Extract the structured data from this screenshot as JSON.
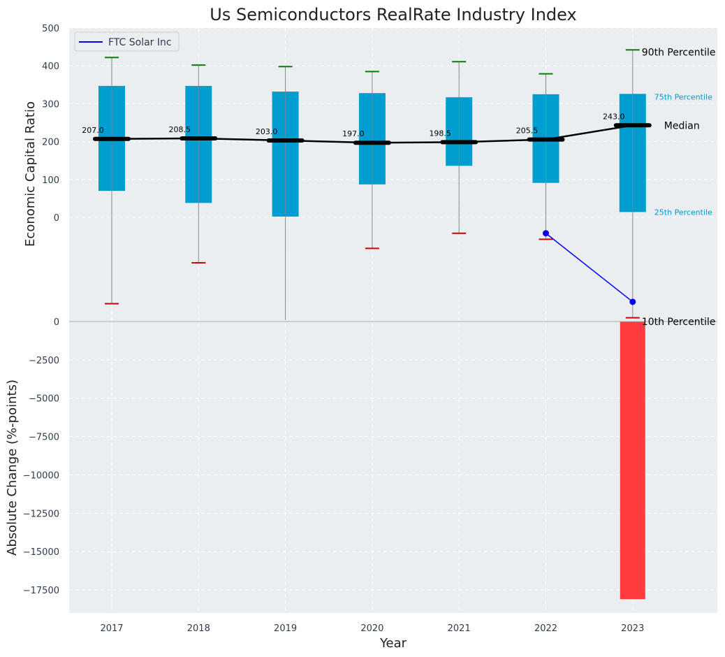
{
  "chart_data": {
    "type": "box",
    "title": "Us Semiconductors RealRate Industry Index",
    "xlabel": "Year",
    "categories": [
      "2017",
      "2018",
      "2019",
      "2020",
      "2021",
      "2022",
      "2023"
    ],
    "top_panel": {
      "ylabel": "Economic Capital Ratio",
      "ylim": [
        -275,
        500
      ],
      "yticks": [
        0,
        100,
        200,
        300,
        400,
        500
      ],
      "grid": true,
      "legend_position": "top-left",
      "boxes": [
        {
          "year": "2017",
          "p10": -228,
          "p25": 70,
          "median": 207.0,
          "p75": 347,
          "p90": 422
        },
        {
          "year": "2018",
          "p10": -120,
          "p25": 38,
          "median": 208.5,
          "p75": 347,
          "p90": 402
        },
        {
          "year": "2019",
          "p10": -275,
          "p25": 2,
          "median": 203.0,
          "p75": 332,
          "p90": 398
        },
        {
          "year": "2020",
          "p10": -82,
          "p25": 87,
          "median": 197.0,
          "p75": 328,
          "p90": 385
        },
        {
          "year": "2021",
          "p10": -42,
          "p25": 136,
          "median": 198.5,
          "p75": 317,
          "p90": 411
        },
        {
          "year": "2022",
          "p10": -58,
          "p25": 91,
          "median": 205.5,
          "p75": 325,
          "p90": 379
        },
        {
          "year": "2023",
          "p10": -265,
          "p25": 14,
          "median": 243.0,
          "p75": 326,
          "p90": 442
        }
      ],
      "median_labels": [
        "207.0",
        "208.5",
        "203.0",
        "197.0",
        "198.5",
        "205.5",
        "243.0"
      ],
      "company_series": {
        "name": "FTC Solar Inc",
        "x": [
          "2022",
          "2023"
        ],
        "values": [
          -42,
          -223
        ]
      },
      "annotations": {
        "p90": "90th Percentile",
        "p75": "75th Percentile",
        "median": "Median",
        "p25": "25th Percentile",
        "p10": "10th Percentile"
      }
    },
    "bottom_panel": {
      "ylabel": "Absolute Change (%-points)",
      "ylim": [
        -19000,
        0
      ],
      "yticks": [
        0,
        -2500,
        -5000,
        -7500,
        -10000,
        -12500,
        -15000,
        -17500
      ],
      "ytick_labels": [
        "0",
        "−2500",
        "−5000",
        "−7500",
        "−10000",
        "−12500",
        "−15000",
        "−17500"
      ],
      "bars": [
        {
          "year": "2023",
          "value": -18100
        }
      ]
    },
    "colors": {
      "panel_bg": "#eaeef0",
      "box_fill": "#009dd0",
      "whisker": "#888888",
      "p90_cap": "#008000",
      "p10_cap": "#cc0000",
      "median_line": "#000000",
      "company_line": "#0000ff",
      "negative_bar": "#ff3b3f",
      "text": "#2e3b4e",
      "annotation_blue": "#0099cc"
    }
  }
}
